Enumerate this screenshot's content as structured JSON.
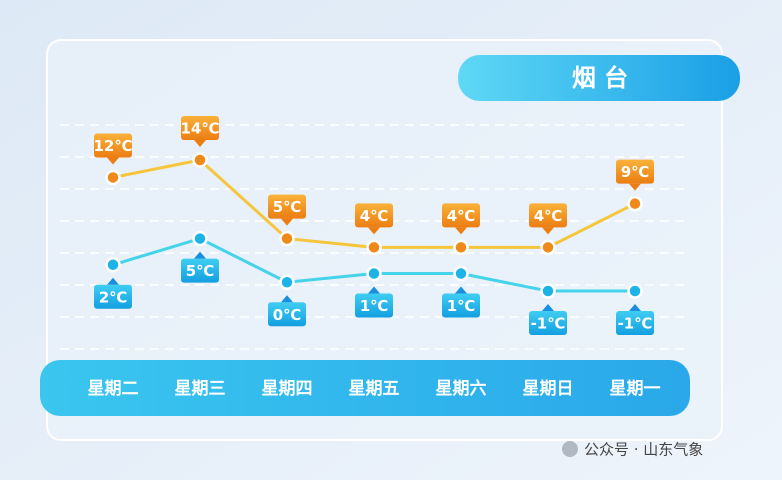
{
  "chart_data": {
    "type": "line",
    "title": "烟 台",
    "watermark": "公众号 · 山东气象",
    "categories": [
      "星期二",
      "星期三",
      "星期四",
      "星期五",
      "星期六",
      "星期日",
      "星期一"
    ],
    "series": [
      {
        "color": "#f5c53c",
        "marker_color": "#ef8a1a",
        "values": [
          12,
          14,
          5,
          4,
          4,
          4,
          9
        ],
        "value_labels": [
          "12℃",
          "14℃",
          "5℃",
          "4℃",
          "4℃",
          "4℃",
          "9℃"
        ]
      },
      {
        "color": "#45d3ea",
        "marker_color": "#1cb4e6",
        "values": [
          2,
          5,
          0,
          1,
          1,
          -1,
          -1
        ],
        "value_labels": [
          "2℃",
          "5℃",
          "0℃",
          "1℃",
          "1℃",
          "-1℃",
          "-1℃"
        ]
      }
    ]
  }
}
